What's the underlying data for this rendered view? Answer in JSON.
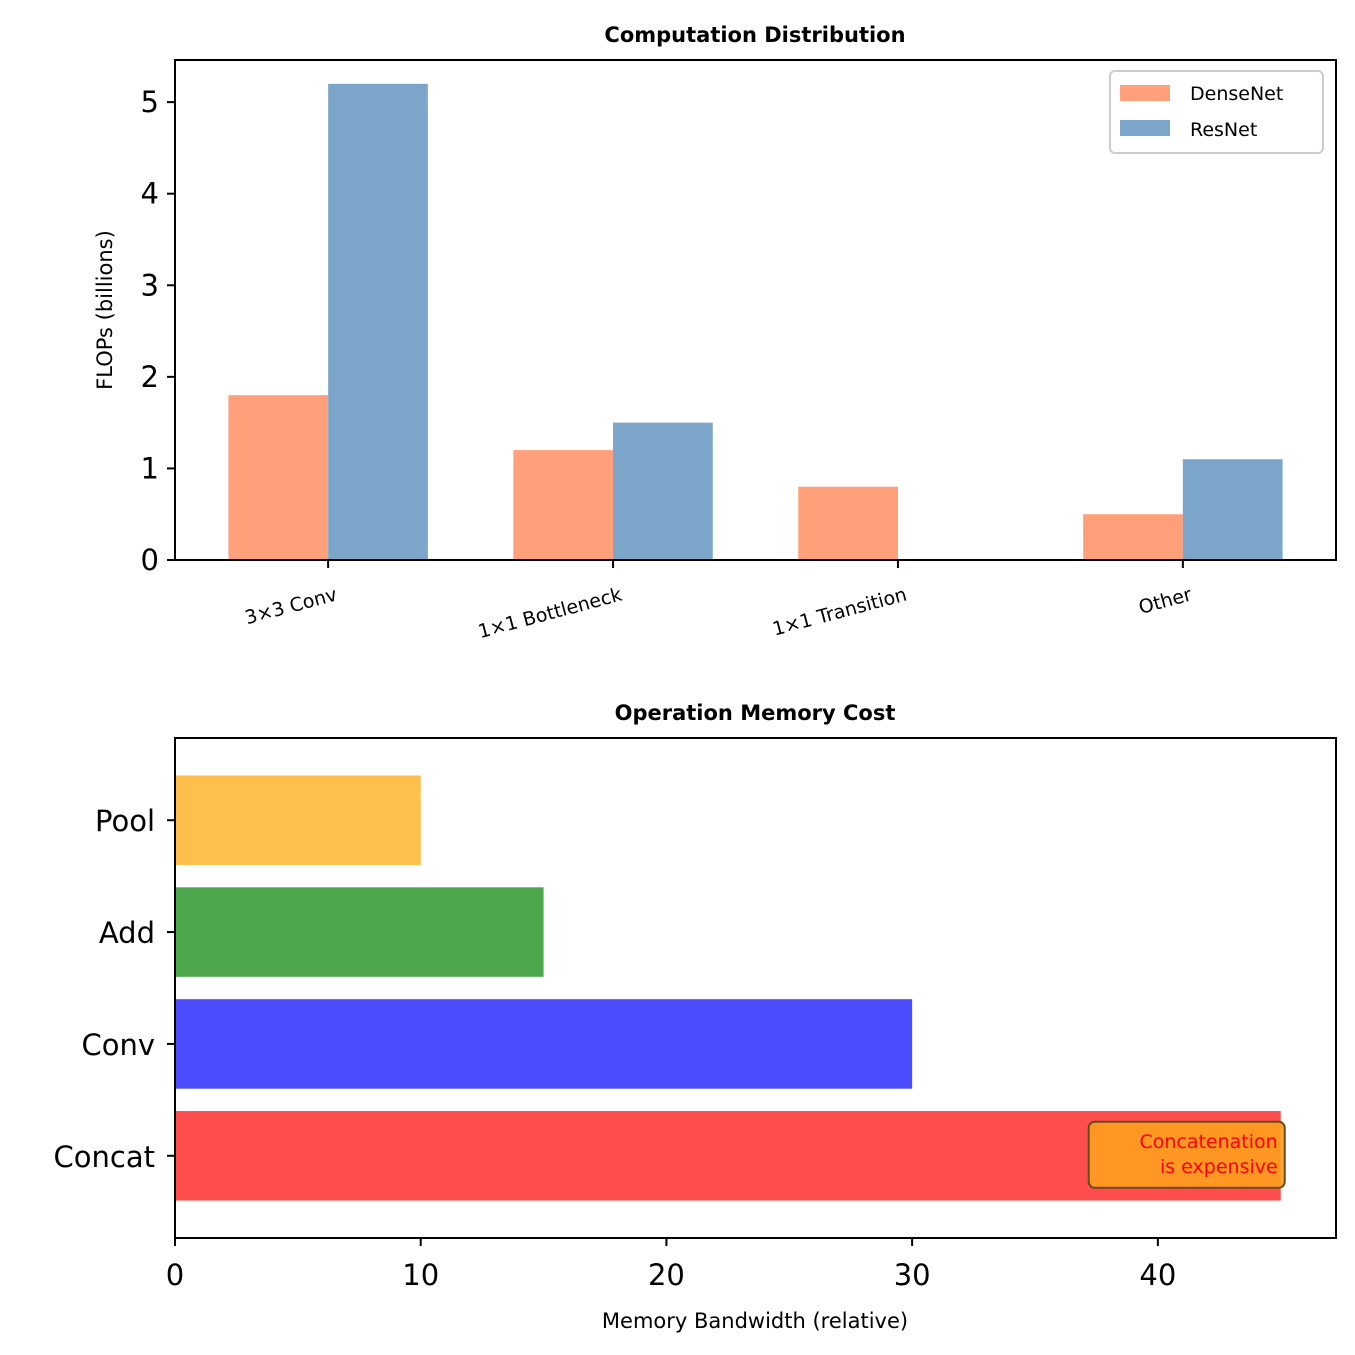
{
  "chart_data": [
    {
      "type": "bar",
      "title": "Computation Distribution",
      "xlabel": "",
      "ylabel": "FLOPs (billions)",
      "categories": [
        "3×3 Conv",
        "1×1 Bottleneck",
        "1×1 Transition",
        "Other"
      ],
      "series": [
        {
          "name": "DenseNet",
          "color": "#FFA07A",
          "values": [
            1.8,
            1.2,
            0.8,
            0.5
          ]
        },
        {
          "name": "ResNet",
          "color": "#7BA6C9",
          "values": [
            5.2,
            1.5,
            0,
            1.1
          ]
        }
      ],
      "ylim": [
        0,
        5.46
      ],
      "yticks": [
        0,
        1,
        2,
        3,
        4,
        5
      ],
      "xtick_rotation_deg": 15,
      "grid": false,
      "legend": "top-right"
    },
    {
      "type": "bar",
      "orientation": "horizontal",
      "title": "Operation Memory Cost",
      "xlabel": "Memory Bandwidth (relative)",
      "ylabel": "",
      "categories": [
        "Concat",
        "Conv",
        "Add",
        "Pool"
      ],
      "values": [
        45,
        30,
        15,
        10
      ],
      "colors": [
        "#FF4C4C",
        "#4C4CFF",
        "#4CA64C",
        "#FFBF4C"
      ],
      "xlim": [
        0,
        47.25
      ],
      "xticks": [
        0,
        10,
        20,
        30,
        40
      ],
      "grid": false,
      "annotations": [
        {
          "text": "Concatenation\nis expensive",
          "category": "Concat",
          "x": 45,
          "text_color": "#ff0000",
          "box_color": "#FFA01F"
        }
      ]
    }
  ]
}
